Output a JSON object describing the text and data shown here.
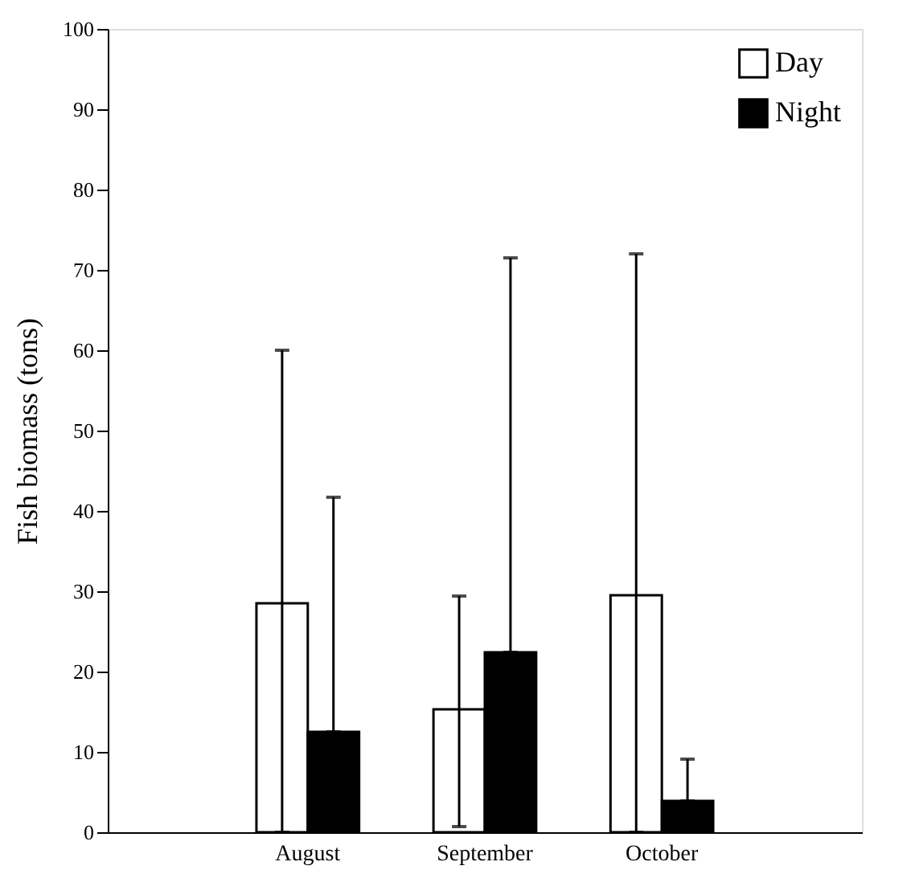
{
  "chart_data": {
    "type": "bar",
    "ylabel": "Fish biomass (tons)",
    "categories": [
      "August",
      "September",
      "October"
    ],
    "series": [
      {
        "name": "Day",
        "color": "#ffffff",
        "values": [
          28.5,
          15.3,
          29.5
        ],
        "errors": [
          [
            0,
            60
          ],
          [
            0.7,
            29.4
          ],
          [
            0,
            72
          ]
        ]
      },
      {
        "name": "Night",
        "color": "#000000",
        "values": [
          12.5,
          22.4,
          3.9
        ],
        "errors": [
          [
            12.5,
            41.7
          ],
          [
            22.4,
            71.5
          ],
          [
            3.9,
            9.1
          ]
        ]
      }
    ],
    "ylim": [
      0,
      100
    ],
    "yticks": [
      0,
      10,
      20,
      30,
      40,
      50,
      60,
      70,
      80,
      90,
      100
    ],
    "grid": false,
    "legend": "top right"
  }
}
